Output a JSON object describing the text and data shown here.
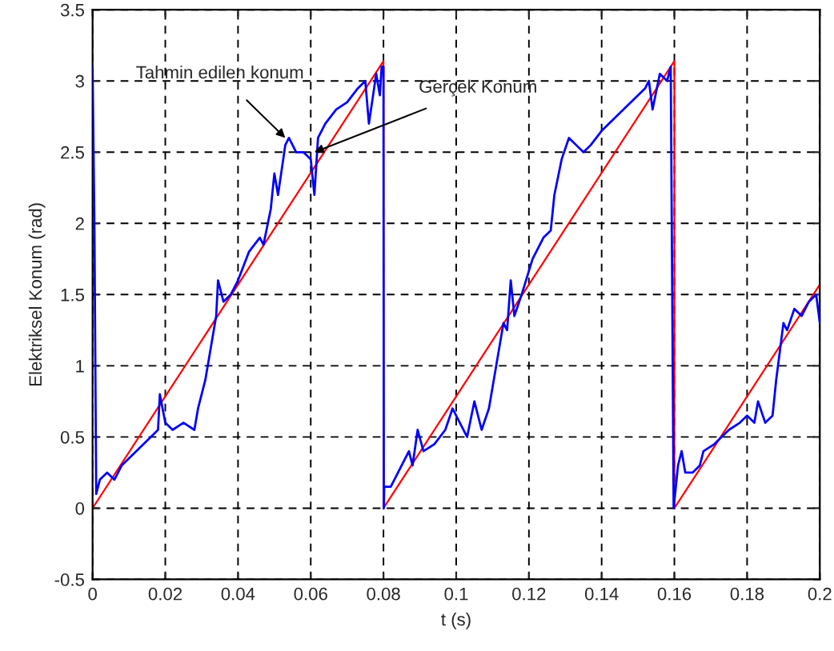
{
  "chart_data": {
    "type": "line",
    "xlabel": "t (s)",
    "ylabel": "Elektriksel Konum (rad)",
    "xlim": [
      0,
      0.2
    ],
    "xticks": [
      0,
      0.02,
      0.04,
      0.06,
      0.08,
      0.1,
      0.12,
      0.14,
      0.16,
      0.18,
      0.2
    ],
    "ylim": [
      -0.5,
      3.5
    ],
    "yticks": [
      -0.5,
      0,
      0.5,
      1,
      1.5,
      2,
      2.5,
      3,
      3.5
    ],
    "grid": true,
    "line_style": "solid",
    "series": [
      {
        "color": "#0000ff",
        "x": [
          0,
          0.0005,
          0.001,
          0.002,
          0.004,
          0.006,
          0.008,
          0.012,
          0.016,
          0.018,
          0.0185,
          0.02,
          0.022,
          0.025,
          0.028,
          0.029,
          0.031,
          0.033,
          0.034,
          0.0345,
          0.036,
          0.038,
          0.04,
          0.043,
          0.046,
          0.047,
          0.049,
          0.05,
          0.051,
          0.053,
          0.054,
          0.056,
          0.058,
          0.06,
          0.061,
          0.062,
          0.064,
          0.067,
          0.07,
          0.073,
          0.075,
          0.076,
          0.078,
          0.079,
          0.0795,
          0.08,
          0.0801,
          0.0802,
          0.082,
          0.084,
          0.087,
          0.088,
          0.0894,
          0.091,
          0.094,
          0.097,
          0.099,
          0.101,
          0.103,
          0.105,
          0.107,
          0.109,
          0.111,
          0.113,
          0.114,
          0.115,
          0.116,
          0.118,
          0.121,
          0.124,
          0.126,
          0.127,
          0.129,
          0.131,
          0.133,
          0.135,
          0.137,
          0.14,
          0.144,
          0.148,
          0.152,
          0.153,
          0.154,
          0.156,
          0.158,
          0.159,
          0.1598,
          0.1602,
          0.161,
          0.162,
          0.163,
          0.165,
          0.167,
          0.168,
          0.171,
          0.175,
          0.178,
          0.18,
          0.182,
          0.183,
          0.185,
          0.187,
          0.188,
          0.19,
          0.191,
          0.193,
          0.195,
          0.197,
          0.199,
          0.2
        ],
        "values": [
          3.1,
          2.0,
          0.1,
          0.2,
          0.25,
          0.2,
          0.3,
          0.4,
          0.5,
          0.55,
          0.8,
          0.6,
          0.55,
          0.6,
          0.55,
          0.7,
          0.9,
          1.2,
          1.35,
          1.6,
          1.45,
          1.5,
          1.6,
          1.8,
          1.9,
          1.85,
          2.1,
          2.35,
          2.2,
          2.55,
          2.6,
          2.5,
          2.5,
          2.45,
          2.2,
          2.6,
          2.7,
          2.8,
          2.85,
          2.95,
          3.0,
          2.7,
          3.05,
          2.9,
          3.1,
          3.1,
          0.0,
          0.15,
          0.15,
          0.25,
          0.4,
          0.3,
          0.55,
          0.4,
          0.45,
          0.55,
          0.7,
          0.6,
          0.5,
          0.75,
          0.55,
          0.7,
          1.0,
          1.3,
          1.25,
          1.6,
          1.35,
          1.5,
          1.75,
          1.9,
          1.95,
          2.2,
          2.45,
          2.6,
          2.55,
          2.5,
          2.55,
          2.65,
          2.75,
          2.85,
          2.95,
          3.0,
          2.8,
          3.05,
          3.0,
          3.1,
          0.0,
          0.1,
          0.3,
          0.4,
          0.25,
          0.25,
          0.3,
          0.4,
          0.45,
          0.55,
          0.6,
          0.65,
          0.6,
          0.75,
          0.6,
          0.65,
          0.9,
          1.3,
          1.25,
          1.4,
          1.35,
          1.45,
          1.5,
          1.3
        ]
      },
      {
        "color": "#ff0000",
        "x": [
          0,
          0.08,
          0.08,
          0.16,
          0.16,
          0.2
        ],
        "values": [
          0,
          3.14,
          0,
          3.14,
          0,
          1.57
        ]
      }
    ],
    "annotations": [
      {
        "text": "Tahmin edilen konum",
        "x": 0.053,
        "y": 2.6
      },
      {
        "text": "Gerçek Konum",
        "x": 0.061,
        "y": 2.5
      }
    ]
  }
}
